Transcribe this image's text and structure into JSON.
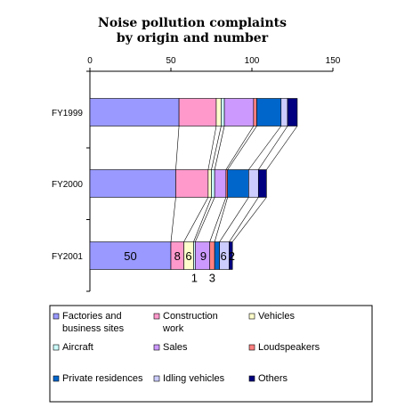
{
  "chart_data": {
    "type": "bar",
    "orientation": "horizontal",
    "stacked": true,
    "title_lines": [
      "Noise pollution complaints",
      "by origin and number"
    ],
    "xlabel": "",
    "ylabel": "",
    "xlim": [
      0,
      150
    ],
    "xticks": [
      "0",
      "50",
      "100",
      "150"
    ],
    "categories": [
      "FY1999",
      "FY2000",
      "FY2001"
    ],
    "series": [
      {
        "name": "Factories and business sites",
        "color": "#9999ff",
        "values": [
          55,
          53,
          50
        ]
      },
      {
        "name": "Construction work",
        "color": "#ff99cc",
        "values": [
          23,
          20,
          8
        ]
      },
      {
        "name": "Vehicles",
        "color": "#ffffcc",
        "values": [
          3,
          2,
          6
        ]
      },
      {
        "name": "Aircraft",
        "color": "#ccffff",
        "values": [
          2,
          2,
          1
        ]
      },
      {
        "name": "Sales",
        "color": "#cc99ff",
        "values": [
          18,
          7,
          9
        ]
      },
      {
        "name": "Loudspeakers",
        "color": "#ff8080",
        "values": [
          2,
          1,
          3
        ]
      },
      {
        "name": "Private residences",
        "color": "#0066cc",
        "values": [
          15,
          13,
          3
        ]
      },
      {
        "name": "Idling vehicles",
        "color": "#ccccff",
        "values": [
          4,
          6,
          6
        ]
      },
      {
        "name": "Others",
        "color": "#000080",
        "values": [
          6,
          5,
          2
        ]
      }
    ],
    "data_labels_FY2001": [
      "50",
      "8",
      "6",
      "1",
      "9",
      "3",
      "",
      "6",
      "2"
    ],
    "legend": {
      "placement": "bottom",
      "rows": [
        [
          "Factories and",
          "business sites"
        ],
        [
          "Construction",
          "work"
        ],
        [
          "Vehicles"
        ],
        [
          "Aircraft"
        ],
        [
          "Sales"
        ],
        [
          "Loudspeakers"
        ],
        [
          "Private residences"
        ],
        [
          "Idling vehicles"
        ],
        [
          "Others"
        ]
      ]
    }
  }
}
